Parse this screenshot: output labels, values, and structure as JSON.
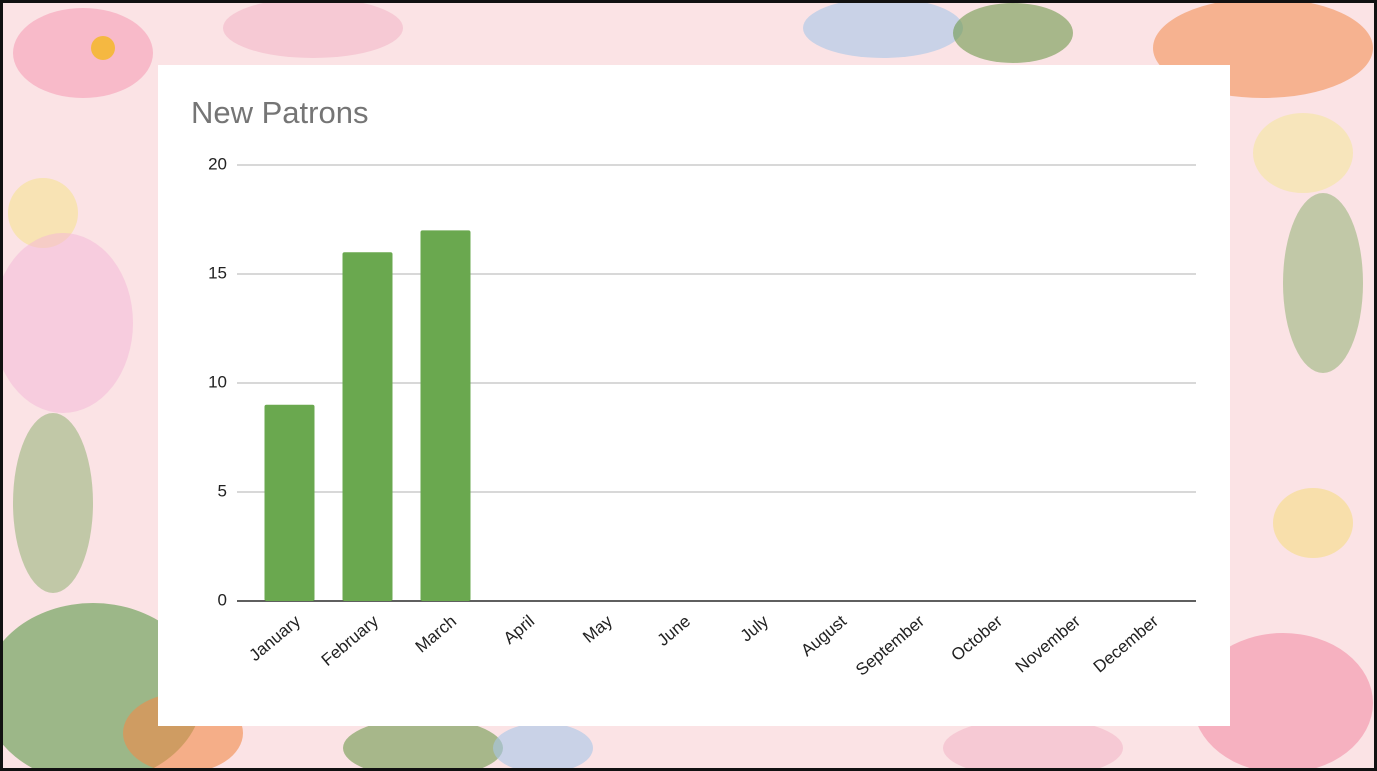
{
  "chart_data": {
    "type": "bar",
    "title": "New Patrons",
    "categories": [
      "January",
      "February",
      "March",
      "April",
      "May",
      "June",
      "July",
      "August",
      "September",
      "October",
      "November",
      "December"
    ],
    "values": [
      9,
      16,
      17,
      null,
      null,
      null,
      null,
      null,
      null,
      null,
      null,
      null
    ],
    "color": "#6aa84f",
    "ylim": [
      0,
      20
    ],
    "yticks": [
      0,
      5,
      10,
      15,
      20
    ],
    "grid": true
  }
}
